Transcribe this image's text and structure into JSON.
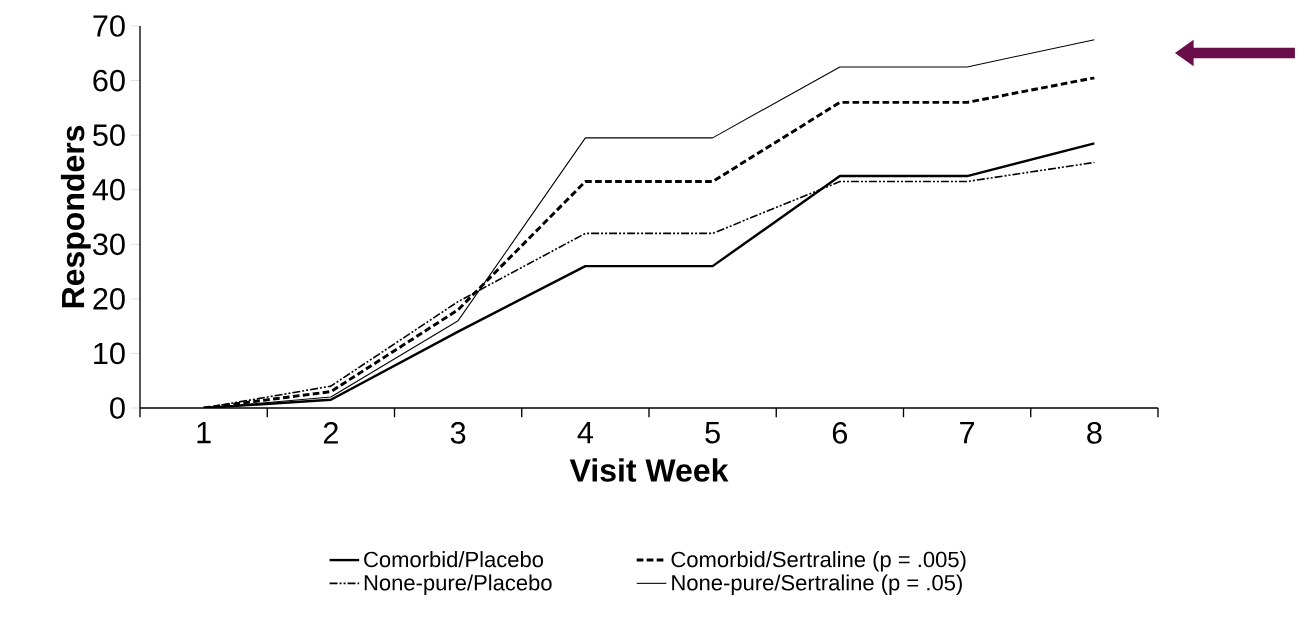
{
  "chart_data": {
    "type": "line",
    "xlabel": "Visit Week",
    "ylabel": "Responders",
    "categories": [
      "1",
      "2",
      "3",
      "4",
      "5",
      "6",
      "7",
      "8"
    ],
    "series": [
      {
        "name": "Comorbid/Placebo",
        "color": "#000000",
        "line_style": "solid",
        "values": [
          0,
          1.5,
          14,
          26,
          26,
          42.5,
          42.5,
          48.5
        ]
      },
      {
        "name": "Comorbid/Sertraline  (p = .005)",
        "color": "#000000",
        "line_style": "dashed",
        "values": [
          0,
          3,
          18,
          41.5,
          41.5,
          56,
          56,
          60.5
        ]
      },
      {
        "name": "None-pure/Placebo",
        "color": "#000000",
        "line_style": "dashdot",
        "values": [
          0,
          4,
          19.5,
          32,
          32,
          41.5,
          41.5,
          45
        ]
      },
      {
        "name": "None-pure/Sertraline  (p = .05)",
        "color": "#000000",
        "line_style": "solid",
        "values": [
          0,
          2,
          16,
          49.5,
          49.5,
          62.5,
          62.5,
          67.5
        ]
      }
    ],
    "ylim": [
      0,
      70
    ],
    "yticks": [
      0,
      10,
      20,
      30,
      40,
      50,
      60,
      70
    ],
    "grid": false,
    "legend": "bottom",
    "marker": "none"
  }
}
